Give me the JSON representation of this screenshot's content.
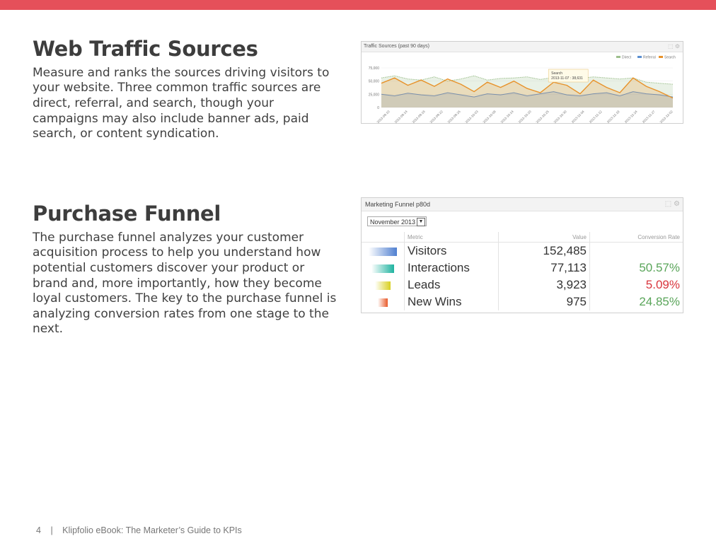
{
  "colors": {
    "topbar": "#e5505a",
    "direct": "#9dbf8d",
    "referral": "#5b8fd0",
    "search": "#e8922a",
    "good": "#5aa55a",
    "bad": "#d9363e"
  },
  "traffic": {
    "heading": "Web Traffic Sources",
    "body": "Measure and ranks the sources driving visitors to your website. Three common traffic sources are direct, referral, and search, though your campaigns may also include banner ads, paid search, or content syndication.",
    "widget_title": "Traffic Sources (past 90 days)",
    "tools": "⬚ ⚙"
  },
  "funnel": {
    "heading": "Purchase Funnel",
    "body": "The purchase funnel analyzes your customer acquisition process to help you understand how potential customers discover your product or brand and, more importantly, how they become loyal customers. The key to the purchase funnel is analyzing conversion rates from one stage to the next.",
    "widget_title": "Marketing Funnel p80d",
    "tools": "⬚ ⚙",
    "month_select": "November 2013",
    "headers": {
      "metric": "Metric",
      "value": "Value",
      "rate": "Conversion Rate"
    },
    "rows": [
      {
        "metric": "Visitors",
        "value": "152,485",
        "rate": "",
        "bar_color": "#4f7fd0",
        "bar_fraction": 1.0
      },
      {
        "metric": "Interactions",
        "value": "77,113",
        "rate": "50.57%",
        "rate_status": "good",
        "bar_color": "#1fb3a0",
        "bar_fraction": 0.8
      },
      {
        "metric": "Leads",
        "value": "3,923",
        "rate": "5.09%",
        "rate_status": "bad",
        "bar_color": "#d8d020",
        "bar_fraction": 0.55
      },
      {
        "metric": "New Wins",
        "value": "975",
        "rate": "24.85%",
        "rate_status": "good",
        "bar_color": "#e85a2a",
        "bar_fraction": 0.35
      }
    ]
  },
  "chart_data": {
    "type": "area",
    "title": "Traffic Sources (past 90 days)",
    "ylim": [
      0,
      75000
    ],
    "yticks": [
      "75,000",
      "50,000",
      "25,000",
      "0"
    ],
    "categories": [
      "2013-09-10",
      "2013-09-14",
      "2013-09-18",
      "2013-09-22",
      "2013-09-26",
      "2013-09-30",
      "2013-10-04",
      "2013-10-08",
      "2013-10-12",
      "2013-10-16",
      "2013-10-20",
      "2013-10-24",
      "2013-10-28",
      "2013-11-01",
      "2013-11-05",
      "2013-11-09",
      "2013-11-13",
      "2013-11-17",
      "2013-11-21",
      "2013-11-25",
      "2013-11-29",
      "2013-12-03",
      "2013-12-07"
    ],
    "xticks": [
      "2013-09-10",
      "2013-09-14",
      "2013-09-18",
      "2013-09-22",
      "2013-09-26",
      "2013-10-03",
      "2013-10-08",
      "2013-10-14",
      "2013-10-20",
      "2013-10-25",
      "2013-10-30",
      "2013-11-04",
      "2013-11-12",
      "2013-11-19",
      "2013-11-24",
      "2013-11-27",
      "2013-12-02"
    ],
    "legend": [
      "Direct",
      "Referral",
      "Search"
    ],
    "legend_position": "top-right",
    "series": [
      {
        "name": "Direct",
        "values": [
          56000,
          60000,
          54000,
          52000,
          58000,
          50000,
          54000,
          60000,
          52000,
          55000,
          56000,
          58000,
          53000,
          57000,
          60000,
          55000,
          58000,
          56000,
          54000,
          56000,
          48000,
          46000,
          44000
        ]
      },
      {
        "name": "Referral",
        "values": [
          25000,
          22000,
          27000,
          24000,
          22000,
          28000,
          24000,
          20000,
          26000,
          24000,
          28000,
          22000,
          26000,
          30000,
          24000,
          22000,
          26000,
          28000,
          22000,
          30000,
          26000,
          24000,
          20000
        ]
      },
      {
        "name": "Search",
        "values": [
          46000,
          56000,
          42000,
          52000,
          40000,
          54000,
          44000,
          30000,
          48000,
          38000,
          50000,
          36000,
          28000,
          48000,
          42000,
          26000,
          52000,
          38000,
          28000,
          56000,
          40000,
          30000,
          18000
        ]
      }
    ],
    "tooltip": {
      "series": "Search",
      "text": "2013-11-07 : 38,631"
    }
  },
  "footer": {
    "page": "4",
    "sep": "|",
    "title": "Klipfolio eBook: The Marketer’s Guide to KPIs"
  }
}
